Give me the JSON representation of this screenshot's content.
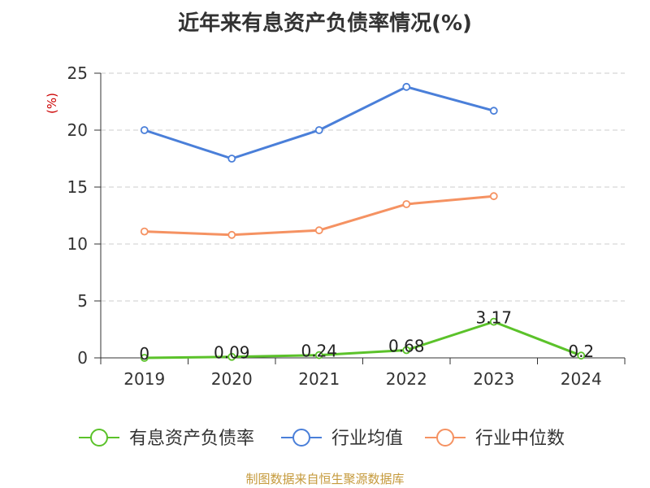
{
  "chart_data": {
    "type": "line",
    "title": "近年来有息资产负债率情况(%)",
    "ylabel": "(%)",
    "xlabel": "",
    "categories": [
      "2019",
      "2020",
      "2021",
      "2022",
      "2023",
      "2024"
    ],
    "ylim": [
      0,
      25
    ],
    "yticks": [
      0,
      5,
      10,
      15,
      20,
      25
    ],
    "grid": "horizontal dashed",
    "legend_position": "bottom",
    "series": [
      {
        "name": "有息资产负债率",
        "color": "#5bc22a",
        "values": [
          0,
          0.09,
          0.24,
          0.68,
          3.17,
          0.2
        ],
        "labels": [
          "0",
          "0.09",
          "0.24",
          "0.68",
          "3.17",
          "0.2"
        ]
      },
      {
        "name": "行业均值",
        "color": "#4a7fd9",
        "values": [
          20.0,
          17.5,
          20.0,
          23.8,
          21.7,
          null
        ]
      },
      {
        "name": "行业中位数",
        "color": "#f59262",
        "values": [
          11.1,
          10.8,
          11.2,
          13.5,
          14.2,
          null
        ]
      }
    ]
  },
  "source": "制图数据来自恒生聚源数据库"
}
